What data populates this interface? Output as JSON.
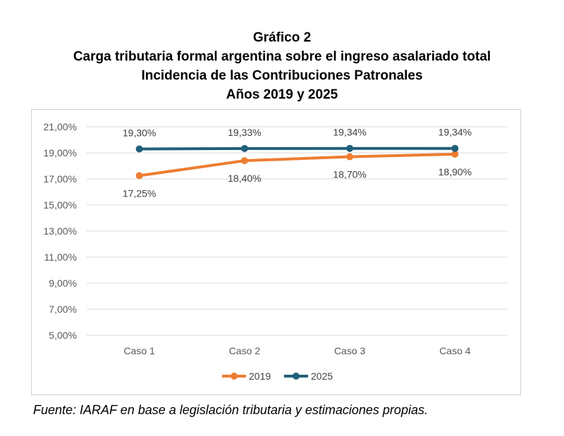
{
  "titles": {
    "figure_number": "Gráfico 2",
    "line1": "Carga tributaria formal argentina sobre el ingreso asalariado total",
    "line2": "Incidencia de las Contribuciones Patronales",
    "line3": "Años 2019 y 2025"
  },
  "source": "Fuente: IARAF en base a legislación tributaria y estimaciones propias.",
  "chart_data": {
    "type": "line",
    "categories": [
      "Caso 1",
      "Caso 2",
      "Caso 3",
      "Caso 4"
    ],
    "series": [
      {
        "name": "2019",
        "values": [
          17.25,
          18.4,
          18.7,
          18.9
        ],
        "labels": [
          "17,25%",
          "18,40%",
          "18,70%",
          "18,90%"
        ],
        "label_position": "below",
        "color": "#ED7D31"
      },
      {
        "name": "2025",
        "values": [
          19.3,
          19.33,
          19.34,
          19.34
        ],
        "labels": [
          "19,30%",
          "19,33%",
          "19,34%",
          "19,34%"
        ],
        "label_position": "above",
        "color": "#1F5F7A"
      }
    ],
    "ylim": [
      5,
      21
    ],
    "yticks": [
      5,
      7,
      9,
      11,
      13,
      15,
      17,
      19,
      21
    ],
    "ytick_labels": [
      "5,00%",
      "7,00%",
      "9,00%",
      "11,00%",
      "13,00%",
      "15,00%",
      "17,00%",
      "19,00%",
      "21,00%"
    ],
    "grid": true,
    "legend": "bottom",
    "xlabel": "",
    "ylabel": ""
  }
}
